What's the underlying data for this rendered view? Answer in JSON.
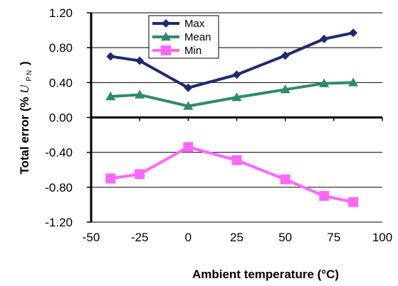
{
  "chart_data": {
    "type": "line",
    "xlabel": "Ambient temperature (°C)",
    "ylabel": {
      "prefix": "Total error  (% ",
      "var": "U",
      "sub": "PN",
      "suffix": ")"
    },
    "xlim": [
      -50,
      100
    ],
    "ylim": [
      -1.2,
      1.2
    ],
    "x_ticks": [
      "-50",
      "-25",
      "0",
      "25",
      "50",
      "75",
      "100"
    ],
    "y_ticks": [
      "1.20",
      "0.80",
      "0.40",
      "0.00",
      "-0.40",
      "-0.80",
      "-1.20"
    ],
    "grid": true,
    "legend_position": "top-center",
    "x": [
      -40,
      -25,
      0,
      25,
      50,
      70,
      85
    ],
    "series": [
      {
        "name": "Max",
        "color": "#1f2a6e",
        "marker": "diamond",
        "values": [
          0.7,
          0.65,
          0.34,
          0.49,
          0.71,
          0.9,
          0.97
        ]
      },
      {
        "name": "Mean",
        "color": "#2e8b67",
        "marker": "triangle",
        "values": [
          0.24,
          0.26,
          0.13,
          0.23,
          0.32,
          0.39,
          0.4
        ]
      },
      {
        "name": "Min",
        "color": "#ff66ff",
        "marker": "square",
        "values": [
          -0.7,
          -0.65,
          -0.34,
          -0.49,
          -0.71,
          -0.9,
          -0.97
        ]
      }
    ]
  }
}
